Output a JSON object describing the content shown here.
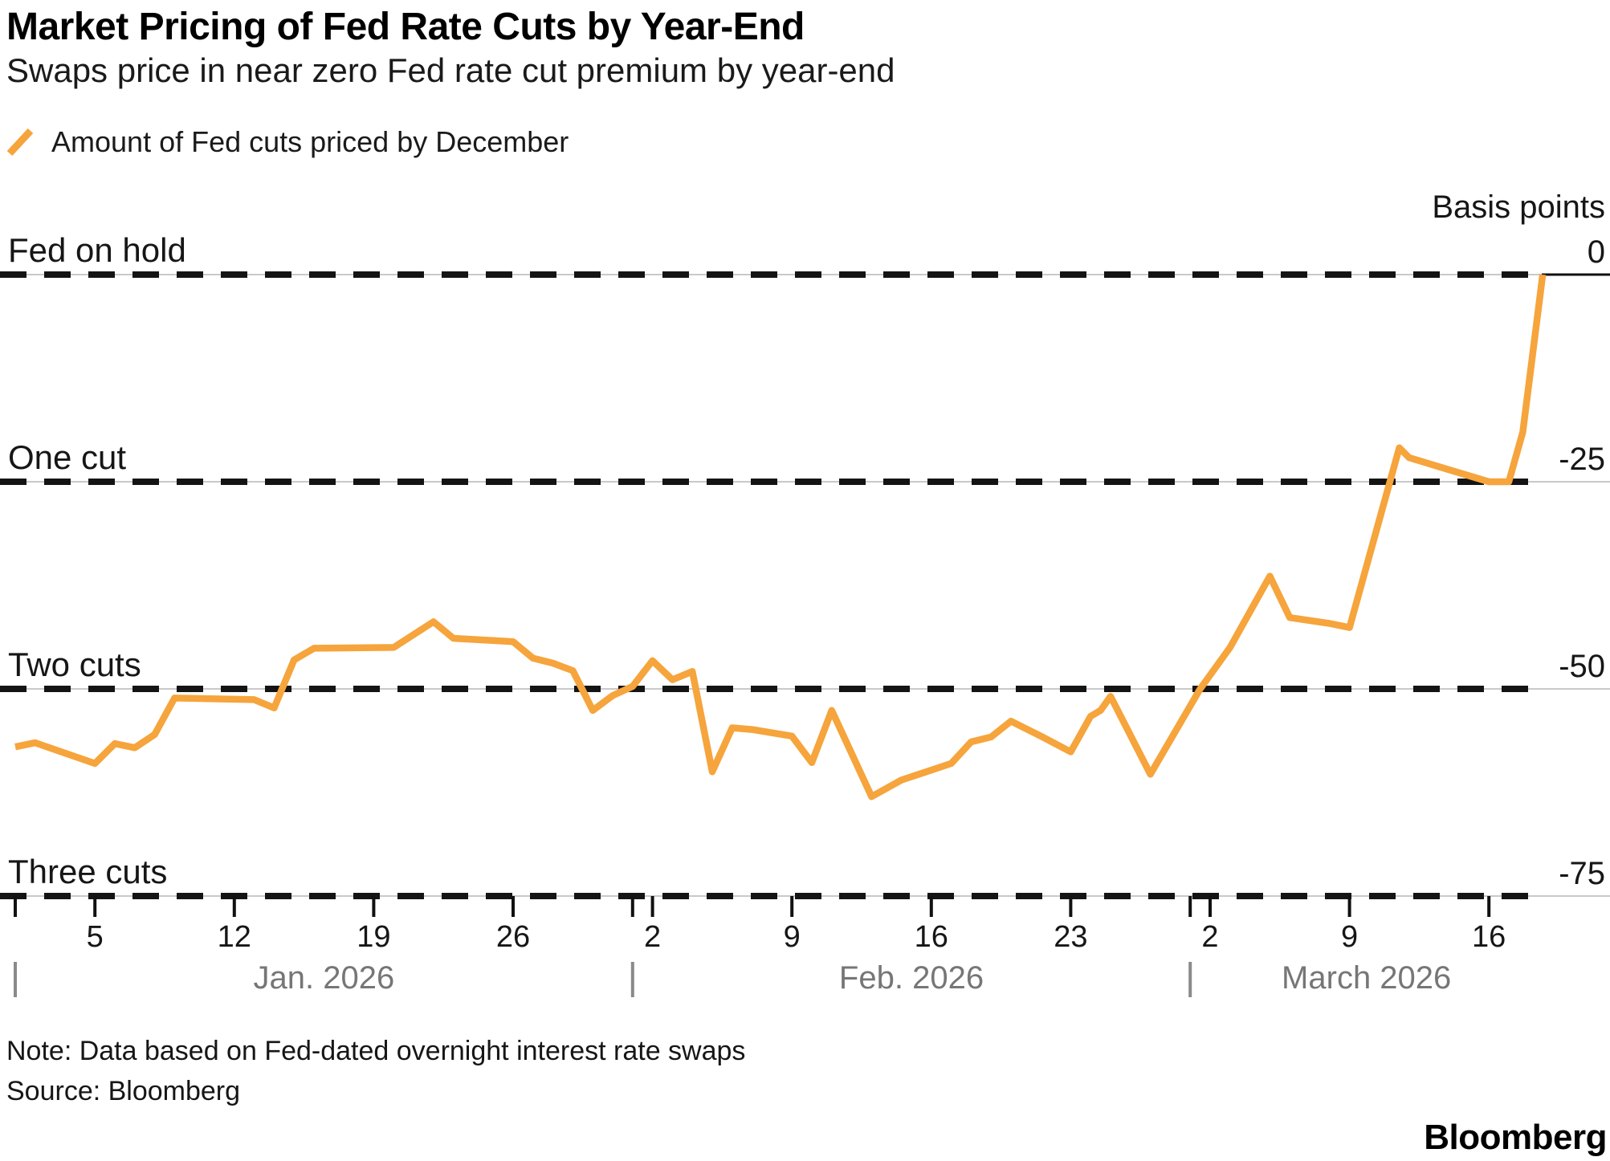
{
  "header": {
    "title": "Market Pricing of Fed Rate Cuts by Year-End",
    "subtitle": "Swaps price in near zero Fed rate cut premium by year-end"
  },
  "legend": {
    "label": "Amount of Fed cuts priced by December",
    "marker_color": "#F6A43C"
  },
  "footer": {
    "note": "Note: Data based on Fed-dated overnight interest rate swaps",
    "source": "Source: Bloomberg",
    "logo": "Bloomberg"
  },
  "chart_data": {
    "type": "line",
    "title": "Market Pricing of Fed Rate Cuts by Year-End",
    "subtitle": "Swaps price in near zero Fed rate cut premium by year-end",
    "unit": "basis points",
    "colors": {
      "line": "#F6A43C",
      "dashed_guide": "#141414",
      "gridline": "#c9c9c9",
      "month_text": "#767676"
    },
    "y_axis": {
      "label": "Basis points",
      "range": [
        -75,
        0
      ],
      "grid": true,
      "lines": [
        {
          "value": 0,
          "left_label": "Fed on hold",
          "right_label": "0"
        },
        {
          "value": -25,
          "left_label": "One cut",
          "right_label": "-25"
        },
        {
          "value": -50,
          "left_label": "Two cuts",
          "right_label": "-50"
        },
        {
          "value": -75,
          "left_label": "Three cuts",
          "right_label": "-75"
        }
      ]
    },
    "x_axis": {
      "start_date": "2026-01-01",
      "ticks": [
        {
          "day": 0,
          "label": ""
        },
        {
          "day": 4,
          "label": "5"
        },
        {
          "day": 11,
          "label": "12"
        },
        {
          "day": 18,
          "label": "19"
        },
        {
          "day": 25,
          "label": "26"
        },
        {
          "day": 31,
          "label": ""
        },
        {
          "day": 32,
          "label": "2"
        },
        {
          "day": 39,
          "label": "9"
        },
        {
          "day": 46,
          "label": "16"
        },
        {
          "day": 53,
          "label": "23"
        },
        {
          "day": 59,
          "label": ""
        },
        {
          "day": 60,
          "label": "2"
        },
        {
          "day": 67,
          "label": "9"
        },
        {
          "day": 74,
          "label": "16"
        }
      ],
      "months": [
        {
          "label": "Jan. 2026",
          "start_day": 0,
          "end_day": 31
        },
        {
          "label": "Feb. 2026",
          "start_day": 31,
          "end_day": 59
        },
        {
          "label": "March 2026",
          "start_day": 59,
          "end_day": 76.7
        }
      ]
    },
    "series": [
      {
        "name": "Amount of Fed cuts priced by December",
        "points_format": [
          "days_since_jan1_2026",
          "basis_points"
        ],
        "points": [
          [
            0,
            -57.0
          ],
          [
            1,
            -56.5
          ],
          [
            4,
            -59.0
          ],
          [
            5,
            -56.6
          ],
          [
            6,
            -57.1
          ],
          [
            7,
            -55.5
          ],
          [
            8,
            -51.1
          ],
          [
            12,
            -51.3
          ],
          [
            13,
            -52.3
          ],
          [
            14,
            -46.5
          ],
          [
            15,
            -45.1
          ],
          [
            19,
            -45.0
          ],
          [
            21,
            -41.9
          ],
          [
            22,
            -43.9
          ],
          [
            25,
            -44.3
          ],
          [
            26,
            -46.3
          ],
          [
            27,
            -46.9
          ],
          [
            28,
            -47.8
          ],
          [
            29,
            -52.6
          ],
          [
            30,
            -50.8
          ],
          [
            31,
            -49.7
          ],
          [
            32,
            -46.6
          ],
          [
            33,
            -48.9
          ],
          [
            34,
            -47.9
          ],
          [
            35,
            -60.0
          ],
          [
            36,
            -54.7
          ],
          [
            37,
            -54.9
          ],
          [
            39,
            -55.7
          ],
          [
            40,
            -58.9
          ],
          [
            41,
            -52.6
          ],
          [
            43,
            -63.0
          ],
          [
            44.5,
            -61.0
          ],
          [
            47,
            -59.0
          ],
          [
            48,
            -56.4
          ],
          [
            49,
            -55.8
          ],
          [
            50,
            -53.9
          ],
          [
            51.5,
            -55.7
          ],
          [
            53,
            -57.6
          ],
          [
            54,
            -53.3
          ],
          [
            54.5,
            -52.6
          ],
          [
            55,
            -50.9
          ],
          [
            57,
            -60.3
          ],
          [
            59.5,
            -50.0
          ],
          [
            61,
            -45.0
          ],
          [
            63,
            -36.4
          ],
          [
            64,
            -41.4
          ],
          [
            66,
            -42.1
          ],
          [
            67,
            -42.6
          ],
          [
            69.5,
            -20.9
          ],
          [
            70,
            -22.1
          ],
          [
            74,
            -25.0
          ],
          [
            75,
            -25.0
          ],
          [
            75.7,
            -19.0
          ],
          [
            76.7,
            0.0
          ]
        ]
      }
    ]
  }
}
